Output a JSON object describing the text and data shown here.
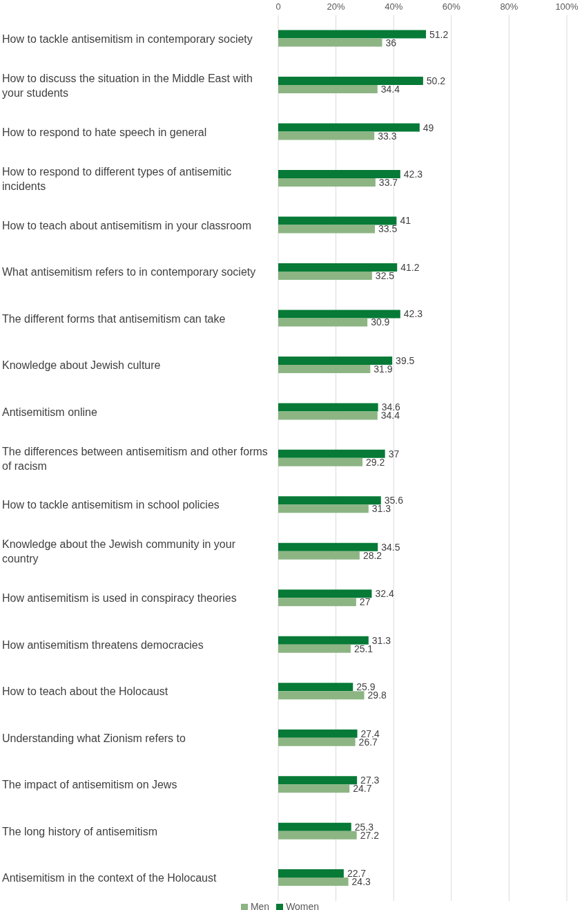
{
  "chart_data": {
    "type": "bar",
    "orientation": "horizontal",
    "categories": [
      "How to tackle antisemitism in contemporary society",
      "How to discuss the situation in the Middle East with your students",
      "How to respond to hate speech in general",
      "How to respond to different types of antisemitic incidents",
      "How to teach about antisemitism in your classroom",
      "What antisemitism refers to in contemporary society",
      "The different forms that antisemitism can take",
      "Knowledge about Jewish culture",
      "Antisemitism online",
      "The differences between antisemitism and other forms of racism",
      "How to tackle antisemitism in school policies",
      "Knowledge about the Jewish community in your country",
      "How antisemitism is used in conspiracy theories",
      "How antisemitism threatens democracies",
      "How to teach about the Holocaust",
      "Understanding what Zionism refers to",
      "The impact of antisemitism on Jews",
      "The long history of antisemitism",
      "Antisemitism in the context of the Holocaust"
    ],
    "series": [
      {
        "name": "Women",
        "color": "#067a36",
        "values": [
          51.2,
          50.2,
          49,
          42.3,
          41,
          41.2,
          42.3,
          39.5,
          34.6,
          37,
          35.6,
          34.5,
          32.4,
          31.3,
          25.9,
          27.4,
          27.3,
          25.3,
          22.7
        ]
      },
      {
        "name": "Men",
        "color": "#8cb583",
        "values": [
          36,
          34.4,
          33.3,
          33.7,
          33.5,
          32.5,
          30.9,
          31.9,
          34.4,
          29.2,
          31.3,
          28.2,
          27,
          25.1,
          29.8,
          26.7,
          24.7,
          27.2,
          24.3
        ]
      }
    ],
    "xlim": [
      0,
      100
    ],
    "xticks": [
      0,
      {
        "value": 20,
        "label": "20%"
      },
      {
        "value": 40,
        "label": "40%"
      },
      {
        "value": 60,
        "label": "60%"
      },
      {
        "value": 80,
        "label": "80%"
      },
      {
        "value": 100,
        "label": "100%"
      }
    ],
    "grid": "x",
    "legend": "bottom",
    "data_labels": true
  }
}
